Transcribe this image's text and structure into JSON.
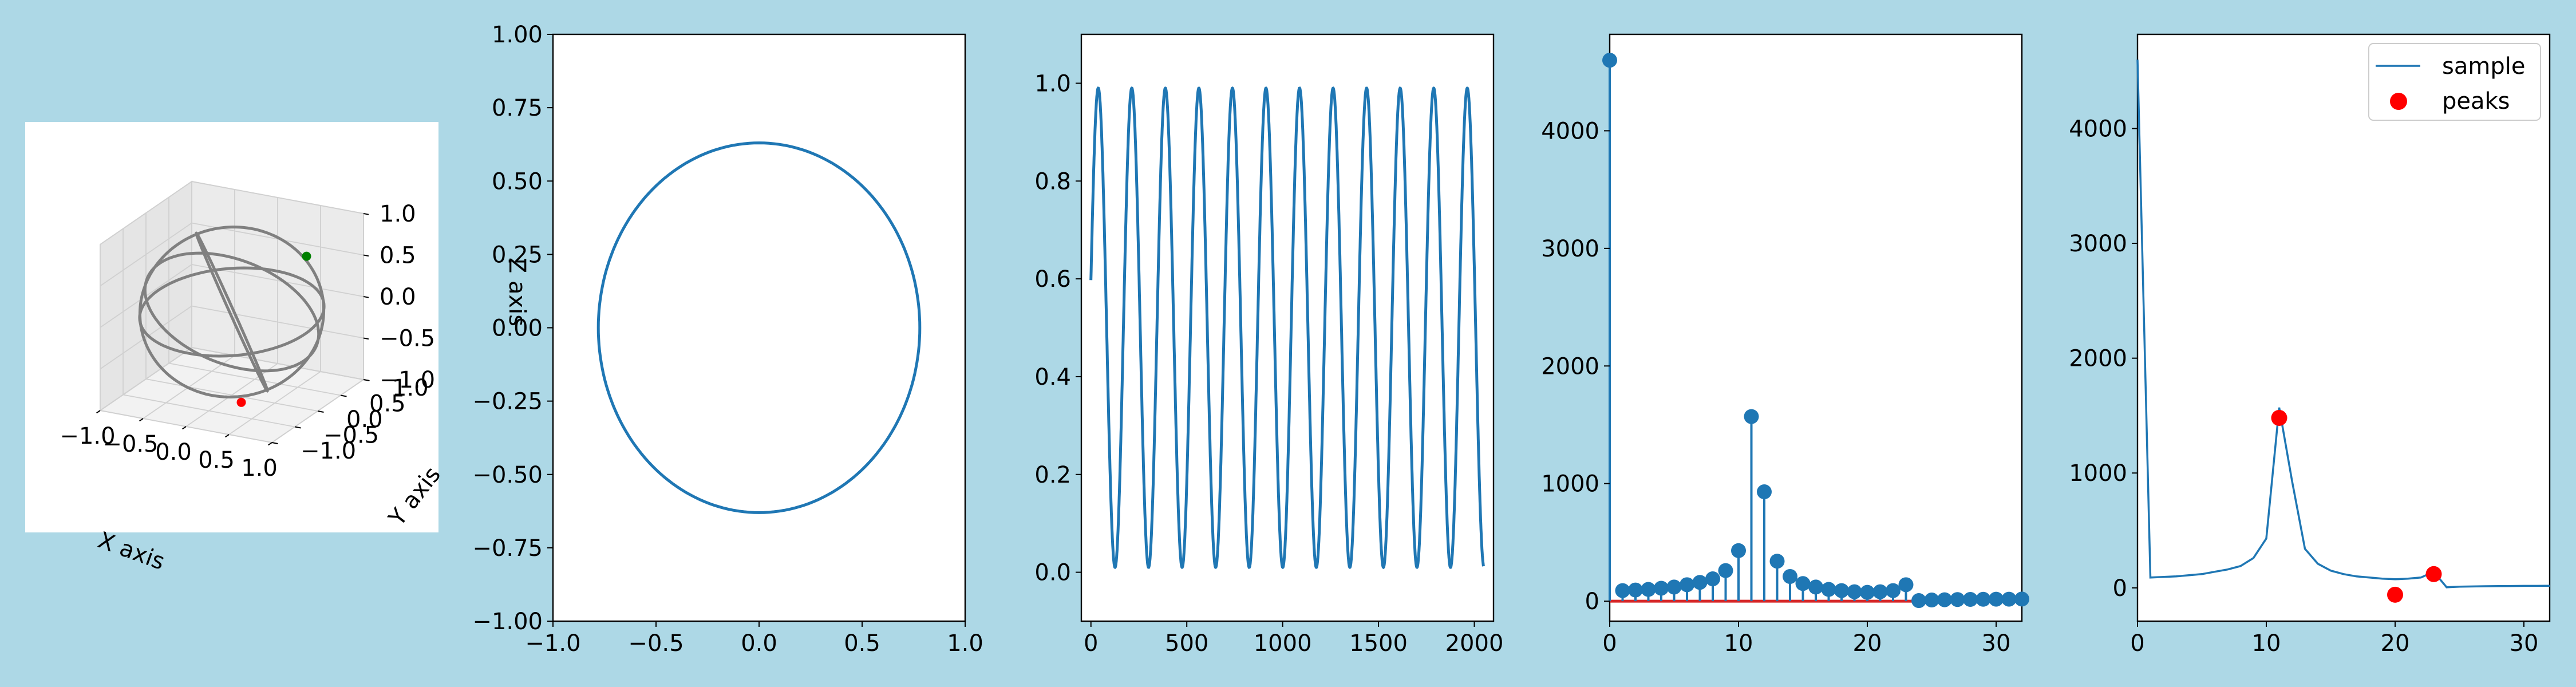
{
  "colors": {
    "background": "#add8e6",
    "axes_face": "#ffffff",
    "line_blue": "#1f77b4",
    "grey": "#808080",
    "red": "#ff0000",
    "green": "#008000",
    "stem_base": "#d62728"
  },
  "chart_data": [
    {
      "type": "line3d",
      "xlabel": "X axis",
      "ylabel": "Y axis",
      "zlabel": "Z axis",
      "xticks": [
        "−1.0",
        "−0.5",
        "0.0",
        "0.5",
        "1.0"
      ],
      "yticks": [
        "−1.0",
        "−0.5",
        "0.0",
        "0.5",
        "1.0"
      ],
      "zticks": [
        "−1.0",
        "−0.5",
        "0.0",
        "0.5",
        "1.0"
      ],
      "xlim": [
        -1,
        1
      ],
      "ylim": [
        -1,
        1
      ],
      "zlim": [
        -1,
        1
      ],
      "curve": "closed orbits on unit sphere",
      "markers": [
        {
          "color": "red",
          "point": [
            0.35,
            -0.45,
            -0.85
          ]
        },
        {
          "color": "green",
          "point": [
            0.55,
            0.6,
            0.55
          ]
        }
      ]
    },
    {
      "type": "line",
      "shape": "ellipse",
      "center": [
        0,
        0
      ],
      "radii": [
        0.78,
        0.63
      ],
      "xlim": [
        -1,
        1
      ],
      "ylim": [
        -1,
        1
      ],
      "xticks": [
        "−1.0",
        "−0.5",
        "0.0",
        "0.5",
        "1.0"
      ],
      "yticks": [
        "−1.00",
        "−0.75",
        "−0.50",
        "−0.25",
        "0.00",
        "0.25",
        "0.50",
        "0.75",
        "1.00"
      ]
    },
    {
      "type": "line",
      "function": "0.5 + 0.49*sin(2*pi*x/175 + 0.2)",
      "x_range": [
        0,
        2048
      ],
      "xlim": [
        -50,
        2100
      ],
      "ylim": [
        -0.1,
        1.1
      ],
      "xticks": [
        "0",
        "500",
        "1000",
        "1500",
        "2000"
      ],
      "yticks": [
        "0.0",
        "0.2",
        "0.4",
        "0.6",
        "0.8",
        "1.0"
      ]
    },
    {
      "type": "stem",
      "x": [
        0,
        1,
        2,
        3,
        4,
        5,
        6,
        7,
        8,
        9,
        10,
        11,
        12,
        13,
        14,
        15,
        16,
        17,
        18,
        19,
        20,
        21,
        22,
        23,
        24,
        25,
        26,
        27,
        28,
        29,
        30,
        31,
        32
      ],
      "values": [
        4600,
        90,
        95,
        100,
        110,
        120,
        140,
        160,
        190,
        260,
        430,
        1570,
        930,
        340,
        210,
        150,
        120,
        100,
        90,
        80,
        75,
        80,
        90,
        140,
        5,
        10,
        12,
        14,
        15,
        16,
        17,
        17,
        18
      ],
      "xlim": [
        0,
        32
      ],
      "ylim": [
        -170,
        4820
      ],
      "xticks": [
        "0",
        "10",
        "20",
        "30"
      ],
      "yticks": [
        "0",
        "1000",
        "2000",
        "3000",
        "4000"
      ]
    },
    {
      "type": "line",
      "series": [
        {
          "name": "sample",
          "x": [
            0,
            1,
            2,
            3,
            4,
            5,
            6,
            7,
            8,
            9,
            10,
            11,
            12,
            13,
            14,
            15,
            16,
            17,
            18,
            19,
            20,
            21,
            22,
            23,
            24,
            25,
            26,
            27,
            28,
            29,
            30,
            31,
            32
          ],
          "values": [
            4600,
            90,
            95,
            100,
            110,
            120,
            140,
            160,
            190,
            260,
            430,
            1570,
            930,
            340,
            210,
            150,
            120,
            100,
            90,
            80,
            75,
            80,
            90,
            140,
            5,
            10,
            12,
            14,
            15,
            16,
            17,
            17,
            18
          ]
        }
      ],
      "peaks": {
        "name": "peaks",
        "x": [
          11,
          20,
          23
        ],
        "values": [
          1480,
          -60,
          120
        ]
      },
      "legend": [
        "sample",
        "peaks"
      ],
      "legend_position": "top-right",
      "xlim": [
        0,
        32
      ],
      "ylim": [
        -290,
        4820
      ],
      "xticks": [
        "0",
        "10",
        "20",
        "30"
      ],
      "yticks": [
        "0",
        "1000",
        "2000",
        "3000",
        "4000"
      ]
    }
  ]
}
